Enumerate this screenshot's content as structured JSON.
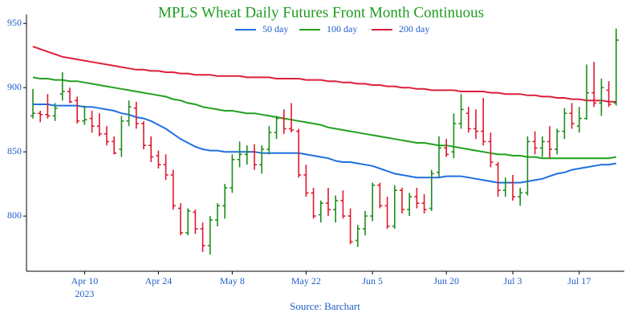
{
  "chart_data": {
    "type": "ohlc",
    "title": "MPLS Wheat Daily Futures Front Month Continuous",
    "source": "Source: Barchart",
    "x": [
      "2023-03-29",
      "2023-03-30",
      "2023-03-31",
      "2023-04-03",
      "2023-04-04",
      "2023-04-05",
      "2023-04-06",
      "2023-04-10",
      "2023-04-11",
      "2023-04-12",
      "2023-04-13",
      "2023-04-14",
      "2023-04-17",
      "2023-04-18",
      "2023-04-19",
      "2023-04-20",
      "2023-04-21",
      "2023-04-24",
      "2023-04-25",
      "2023-04-26",
      "2023-04-27",
      "2023-04-28",
      "2023-05-01",
      "2023-05-02",
      "2023-05-03",
      "2023-05-04",
      "2023-05-05",
      "2023-05-08",
      "2023-05-09",
      "2023-05-10",
      "2023-05-11",
      "2023-05-12",
      "2023-05-15",
      "2023-05-16",
      "2023-05-17",
      "2023-05-18",
      "2023-05-19",
      "2023-05-22",
      "2023-05-23",
      "2023-05-24",
      "2023-05-25",
      "2023-05-26",
      "2023-05-30",
      "2023-05-31",
      "2023-06-01",
      "2023-06-02",
      "2023-06-05",
      "2023-06-06",
      "2023-06-07",
      "2023-06-08",
      "2023-06-09",
      "2023-06-12",
      "2023-06-13",
      "2023-06-14",
      "2023-06-15",
      "2023-06-16",
      "2023-06-20",
      "2023-06-21",
      "2023-06-22",
      "2023-06-23",
      "2023-06-26",
      "2023-06-27",
      "2023-06-28",
      "2023-06-29",
      "2023-06-30",
      "2023-07-03",
      "2023-07-05",
      "2023-07-06",
      "2023-07-07",
      "2023-07-10",
      "2023-07-11",
      "2023-07-12",
      "2023-07-13",
      "2023-07-14",
      "2023-07-17",
      "2023-07-18",
      "2023-07-19",
      "2023-07-20",
      "2023-07-21",
      "2023-07-24"
    ],
    "open": [
      878,
      880,
      879,
      878,
      895,
      897,
      890,
      874,
      876,
      870,
      864,
      858,
      852,
      874,
      884,
      872,
      855,
      847,
      840,
      832,
      806,
      787,
      803,
      790,
      777,
      797,
      808,
      822,
      844,
      848,
      850,
      840,
      852,
      865,
      876,
      868,
      866,
      832,
      818,
      801,
      810,
      805,
      812,
      800,
      781,
      790,
      800,
      824,
      808,
      792,
      820,
      805,
      815,
      810,
      806,
      834,
      853,
      850,
      872,
      880,
      868,
      866,
      858,
      840,
      820,
      826,
      815,
      818,
      858,
      853,
      858,
      852,
      866,
      880,
      870,
      876,
      896,
      888,
      898,
      888
    ],
    "high": [
      899,
      882,
      895,
      888,
      912,
      900,
      893,
      886,
      882,
      880,
      870,
      862,
      878,
      890,
      889,
      874,
      862,
      851,
      848,
      836,
      810,
      806,
      805,
      795,
      800,
      810,
      825,
      848,
      858,
      855,
      856,
      855,
      870,
      878,
      883,
      888,
      868,
      840,
      822,
      812,
      822,
      816,
      820,
      806,
      793,
      804,
      826,
      826,
      815,
      824,
      822,
      818,
      822,
      817,
      836,
      862,
      860,
      880,
      895,
      885,
      883,
      892,
      865,
      842,
      830,
      832,
      822,
      862,
      866,
      862,
      870,
      868,
      884,
      888,
      885,
      918,
      920,
      907,
      905,
      946
    ],
    "low": [
      876,
      873,
      876,
      874,
      890,
      888,
      872,
      871,
      865,
      862,
      855,
      848,
      846,
      870,
      868,
      852,
      842,
      837,
      828,
      805,
      785,
      785,
      786,
      772,
      770,
      792,
      798,
      818,
      838,
      840,
      836,
      833,
      848,
      860,
      864,
      865,
      830,
      815,
      798,
      795,
      800,
      795,
      798,
      778,
      776,
      785,
      796,
      806,
      790,
      790,
      802,
      800,
      806,
      802,
      804,
      830,
      846,
      845,
      868,
      865,
      860,
      855,
      838,
      815,
      815,
      812,
      808,
      816,
      848,
      846,
      845,
      848,
      860,
      868,
      865,
      875,
      885,
      878,
      885,
      886
    ],
    "close": [
      880,
      879,
      878,
      884,
      897,
      889,
      874,
      875,
      870,
      864,
      858,
      849,
      874,
      885,
      872,
      855,
      846,
      840,
      832,
      808,
      787,
      804,
      790,
      777,
      797,
      808,
      822,
      844,
      848,
      850,
      840,
      852,
      865,
      876,
      868,
      867,
      832,
      818,
      800,
      810,
      805,
      812,
      800,
      780,
      790,
      800,
      824,
      808,
      792,
      820,
      805,
      815,
      810,
      805,
      833,
      853,
      848,
      872,
      883,
      868,
      866,
      858,
      842,
      820,
      826,
      815,
      818,
      858,
      853,
      858,
      852,
      866,
      880,
      872,
      876,
      896,
      888,
      900,
      887,
      937
    ],
    "up_color": "#1e8c1e",
    "down_color": "#e0192d",
    "series": [
      {
        "name": "50 day",
        "color": "#1f6fe0",
        "values": [
          887,
          887,
          887,
          886,
          886,
          886,
          886,
          885,
          885,
          884,
          883,
          882,
          880,
          879,
          877,
          876,
          874,
          871,
          868,
          864,
          860,
          857,
          854,
          852,
          851,
          851,
          850,
          850,
          850,
          850,
          850,
          849,
          849,
          849,
          849,
          849,
          849,
          848,
          847,
          846,
          845,
          843,
          842,
          842,
          841,
          840,
          839,
          837,
          835,
          833,
          832,
          831,
          830,
          830,
          830,
          830,
          831,
          831,
          831,
          830,
          829,
          828,
          827,
          826,
          826,
          826,
          826,
          827,
          828,
          829,
          831,
          833,
          834,
          836,
          837,
          838,
          839,
          840,
          840,
          841
        ]
      },
      {
        "name": "100 day",
        "color": "#22a01e",
        "values": [
          908,
          907,
          907,
          906,
          906,
          905,
          905,
          904,
          903,
          902,
          901,
          900,
          899,
          898,
          897,
          896,
          895,
          894,
          893,
          891,
          890,
          888,
          887,
          885,
          884,
          883,
          882,
          882,
          881,
          880,
          880,
          879,
          878,
          877,
          876,
          875,
          874,
          873,
          872,
          871,
          869,
          868,
          867,
          866,
          865,
          864,
          863,
          862,
          861,
          860,
          859,
          858,
          857,
          857,
          856,
          855,
          855,
          854,
          853,
          852,
          851,
          850,
          849,
          848,
          848,
          847,
          847,
          846,
          846,
          845,
          845,
          845,
          845,
          845,
          845,
          845,
          845,
          845,
          845,
          846
        ]
      },
      {
        "name": "200 day",
        "color": "#dc1f3c",
        "values": [
          932,
          930,
          928,
          926,
          924,
          923,
          922,
          921,
          920,
          919,
          918,
          917,
          916,
          915,
          914,
          914,
          913,
          913,
          912,
          912,
          911,
          911,
          910,
          910,
          910,
          909,
          909,
          909,
          909,
          908,
          908,
          908,
          908,
          907,
          907,
          907,
          907,
          906,
          906,
          906,
          905,
          905,
          904,
          904,
          903,
          903,
          902,
          902,
          901,
          901,
          900,
          900,
          899,
          899,
          898,
          898,
          898,
          898,
          897,
          897,
          897,
          897,
          896,
          896,
          895,
          895,
          895,
          894,
          894,
          893,
          893,
          892,
          892,
          891,
          891,
          890,
          890,
          890,
          889,
          889
        ]
      }
    ],
    "ylim": [
      757,
      957
    ],
    "yticks": [
      800,
      850,
      900,
      950
    ],
    "xticks": [
      {
        "value": "2023-04-10",
        "label": "Apr 10",
        "sublabel": "2023"
      },
      {
        "value": "2023-04-24",
        "label": "Apr 24"
      },
      {
        "value": "2023-05-08",
        "label": "May 8"
      },
      {
        "value": "2023-05-22",
        "label": "May 22"
      },
      {
        "value": "2023-06-05",
        "label": "Jun 5"
      },
      {
        "value": "2023-06-20",
        "label": "Jun 20"
      },
      {
        "value": "2023-07-03",
        "label": "Jul 3"
      },
      {
        "value": "2023-07-17",
        "label": "Jul 17"
      }
    ]
  }
}
